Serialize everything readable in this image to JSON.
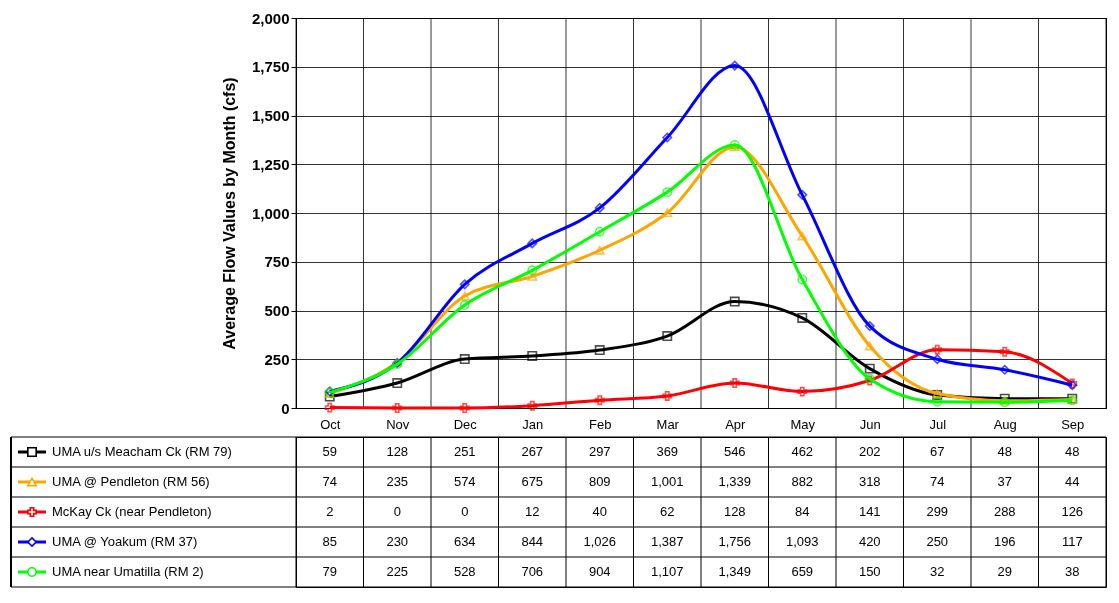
{
  "chart_data": {
    "type": "line",
    "ylabel": "Average Flow Values by Month (cfs)",
    "categories": [
      "Oct",
      "Nov",
      "Dec",
      "Jan",
      "Feb",
      "Mar",
      "Apr",
      "May",
      "Jun",
      "Jul",
      "Aug",
      "Sep"
    ],
    "series": [
      {
        "name": "UMA u/s Meacham Ck (RM 79)",
        "color": "#000000",
        "marker": "square",
        "values": [
          59,
          128,
          251,
          267,
          297,
          369,
          546,
          462,
          202,
          67,
          48,
          48
        ],
        "value_labels": [
          "59",
          "128",
          "251",
          "267",
          "297",
          "369",
          "546",
          "462",
          "202",
          "67",
          "48",
          "48"
        ]
      },
      {
        "name": "UMA @ Pendleton (RM 56)",
        "color": "#ffa500",
        "marker": "triangle",
        "values": [
          74,
          235,
          574,
          675,
          809,
          1001,
          1339,
          882,
          318,
          74,
          37,
          44
        ],
        "value_labels": [
          "74",
          "235",
          "574",
          "675",
          "809",
          "1,001",
          "1,339",
          "882",
          "318",
          "74",
          "37",
          "44"
        ]
      },
      {
        "name": "McKay Ck (near Pendleton)",
        "color": "#ff0000",
        "marker": "cross",
        "values": [
          2,
          0,
          0,
          12,
          40,
          62,
          128,
          84,
          141,
          299,
          288,
          126
        ],
        "value_labels": [
          "2",
          "0",
          "0",
          "12",
          "40",
          "62",
          "128",
          "84",
          "141",
          "299",
          "288",
          "126"
        ]
      },
      {
        "name": "UMA @ Yoakum (RM 37)",
        "color": "#0000ff",
        "marker": "diamond",
        "values": [
          85,
          230,
          634,
          844,
          1026,
          1387,
          1756,
          1093,
          420,
          250,
          196,
          117
        ],
        "value_labels": [
          "85",
          "230",
          "634",
          "844",
          "1,026",
          "1,387",
          "1,756",
          "1,093",
          "420",
          "250",
          "196",
          "117"
        ]
      },
      {
        "name": "UMA near Umatilla (RM 2)",
        "color": "#00ff00",
        "marker": "circle",
        "values": [
          79,
          225,
          528,
          706,
          904,
          1107,
          1349,
          659,
          150,
          32,
          29,
          38
        ],
        "value_labels": [
          "79",
          "225",
          "528",
          "706",
          "904",
          "1,107",
          "1,349",
          "659",
          "150",
          "32",
          "29",
          "38"
        ]
      }
    ],
    "ylim": [
      0,
      2000
    ],
    "yticks": [
      0,
      250,
      500,
      750,
      {
        "value": 1000,
        "label": "1,000"
      },
      {
        "value": 1250,
        "label": "1,250"
      },
      {
        "value": 1500,
        "label": "1,500"
      },
      {
        "value": 1750,
        "label": "1,750"
      },
      {
        "value": 2000,
        "label": "2,000"
      }
    ],
    "grid": true,
    "legend": "bottom",
    "line_style": "solid"
  }
}
